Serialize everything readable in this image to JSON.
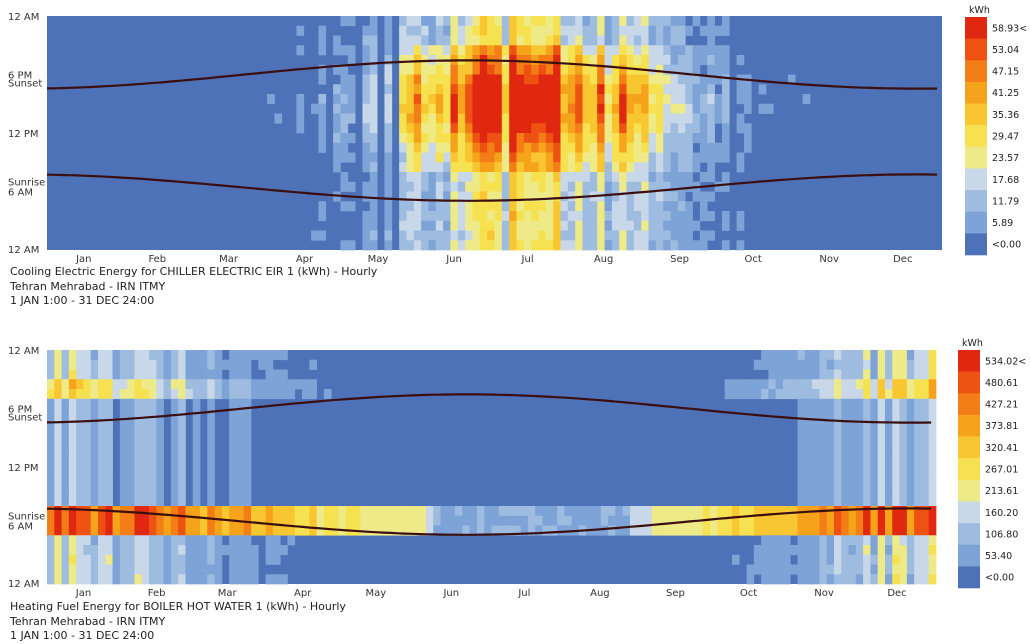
{
  "charts": [
    {
      "caption": {
        "line1": "Cooling Electric Energy for CHILLER ELECTRIC EIR 1 (kWh) - Hourly",
        "line2": "Tehran Mehrabad - IRN ITMY",
        "line3": "1 JAN 1:00 - 31 DEC 24:00"
      },
      "legend": {
        "unit": "kWh",
        "labels": [
          "58.93<",
          "53.04",
          "47.15",
          "41.25",
          "35.36",
          "29.47",
          "23.57",
          "17.68",
          "11.79",
          "5.89",
          "<0.00"
        ],
        "colors": [
          "#e02810",
          "#ee5212",
          "#f37d16",
          "#f6a31c",
          "#f8c630",
          "#f6e150",
          "#eeea88",
          "#c8d8e8",
          "#9ebbe0",
          "#7ea3d6",
          "#4e72b8"
        ]
      },
      "sunrise_label": "Sunrise",
      "sunset_label": "Sunset"
    },
    {
      "caption": {
        "line1": "Heating Fuel Energy for BOILER HOT WATER 1 (kWh) - Hourly",
        "line2": "Tehran Mehrabad - IRN ITMY",
        "line3": "1 JAN 1:00 - 31 DEC 24:00"
      },
      "legend": {
        "unit": "kWh",
        "labels": [
          "534.02<",
          "480.61",
          "427.21",
          "373.81",
          "320.41",
          "267.01",
          "213.61",
          "160.20",
          "106.80",
          "53.40",
          "<0.00"
        ],
        "colors": [
          "#e02810",
          "#ee5212",
          "#f37d16",
          "#f6a31c",
          "#f8c630",
          "#f6e150",
          "#eeea88",
          "#c8d8e8",
          "#9ebbe0",
          "#7ea3d6",
          "#4e72b8"
        ]
      },
      "sunrise_label": "Sunrise",
      "sunset_label": "Sunset"
    }
  ],
  "chart_data": [
    {
      "type": "heatmap",
      "title": "Cooling Electric Energy for CHILLER ELECTRIC EIR 1 (kWh) - Hourly",
      "x_axis": {
        "tick_labels": [
          "Jan",
          "Feb",
          "Mar",
          "Apr",
          "May",
          "Jun",
          "Jul",
          "Aug",
          "Sep",
          "Oct",
          "Nov",
          "Dec"
        ]
      },
      "y_axis": {
        "tick_labels": [
          "12 AM",
          "6 PM",
          "12 PM",
          "6 AM",
          "12 AM"
        ]
      },
      "color_scale": {
        "unit": "kWh",
        "min": 0.0,
        "max": 58.93,
        "bin_labels": [
          "58.93<",
          "53.04",
          "47.15",
          "41.25",
          "35.36",
          "29.47",
          "23.57",
          "17.68",
          "11.79",
          "5.89",
          "<0.00"
        ]
      },
      "overlay_lines": [
        "Sunrise",
        "Sunset"
      ],
      "pattern": "Cooling load concentrated from May to September, peaking July afternoons (~41-59 kWh between noon and 6 PM); near zero from November to February.",
      "grid": false
    },
    {
      "type": "heatmap",
      "title": "Heating Fuel Energy for BOILER HOT WATER 1 (kWh) - Hourly",
      "x_axis": {
        "tick_labels": [
          "Jan",
          "Feb",
          "Mar",
          "Apr",
          "May",
          "Jun",
          "Jul",
          "Aug",
          "Sep",
          "Oct",
          "Nov",
          "Dec"
        ]
      },
      "y_axis": {
        "tick_labels": [
          "12 AM",
          "6 PM",
          "12 PM",
          "Sunrise 6 AM",
          "12 AM"
        ]
      },
      "color_scale": {
        "unit": "kWh",
        "min": 0.0,
        "max": 534.02,
        "bin_labels": [
          "534.02<",
          "480.61",
          "427.21",
          "373.81",
          "320.41",
          "267.01",
          "213.61",
          "160.20",
          "106.80",
          "53.40",
          "<0.00"
        ]
      },
      "overlay_lines": [
        "Sunrise",
        "Sunset"
      ],
      "pattern": "Heating peaks (~427-534 kWh) at the morning start-up band around 6-7 AM in winter months (Nov-Mar); near zero June-September.",
      "grid": false
    }
  ]
}
